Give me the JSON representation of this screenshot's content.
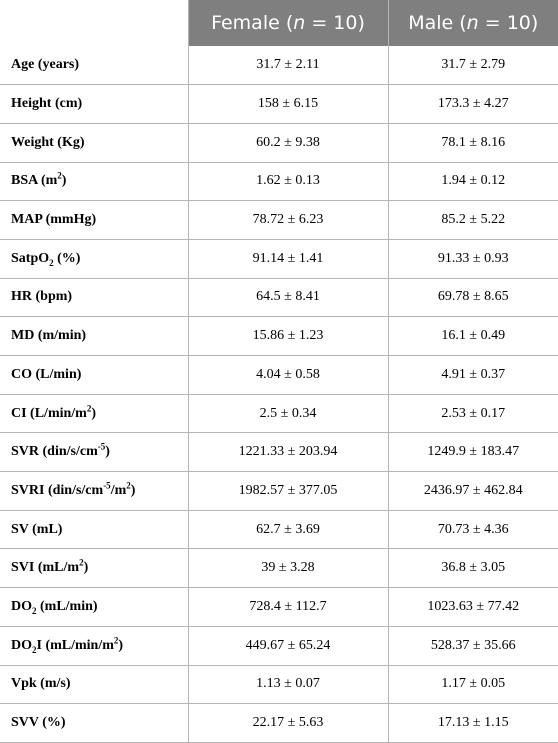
{
  "header": {
    "col1": "",
    "col2": {
      "prefix": "Female (",
      "n": "n",
      "suffix": " = 10)"
    },
    "col3": {
      "prefix": "Male (",
      "n": "n",
      "suffix": " = 10)"
    }
  },
  "rows": [
    {
      "label": {
        "a": "Age (years)",
        "b": "",
        "c": ""
      },
      "female": "31.7 ± 2.11",
      "male": "31.7 ± 2.79"
    },
    {
      "label": {
        "a": "Height (cm)",
        "b": "",
        "c": ""
      },
      "female": "158 ± 6.15",
      "male": "173.3 ± 4.27"
    },
    {
      "label": {
        "a": "Weight (Kg)",
        "b": "",
        "c": ""
      },
      "female": "60.2 ± 9.38",
      "male": "78.1 ± 8.16"
    },
    {
      "label": {
        "a": "BSA (m",
        "b": "2",
        "c": ")"
      },
      "female": "1.62 ± 0.13",
      "male": "1.94 ± 0.12"
    },
    {
      "label": {
        "a": "MAP (mmHg)",
        "b": "",
        "c": ""
      },
      "female": "78.72 ± 6.23",
      "male": "85.2 ± 5.22"
    },
    {
      "label": {
        "a": "SatpO",
        "b": "2",
        "c": " (%)"
      },
      "female": "91.14 ± 1.41",
      "male": "91.33 ± 0.93"
    },
    {
      "label": {
        "a": "HR (bpm)",
        "b": "",
        "c": ""
      },
      "female": "64.5 ± 8.41",
      "male": "69.78 ± 8.65"
    },
    {
      "label": {
        "a": "MD (m/min)",
        "b": "",
        "c": ""
      },
      "female": "15.86 ± 1.23",
      "male": "16.1 ± 0.49"
    },
    {
      "label": {
        "a": "CO (L/min)",
        "b": "",
        "c": ""
      },
      "female": "4.04 ± 0.58",
      "male": "4.91 ± 0.37"
    },
    {
      "label": {
        "a": "CI (L/min/m",
        "b": "2",
        "c": ")"
      },
      "female": "2.5 ± 0.34",
      "male": "2.53 ± 0.17"
    },
    {
      "label": {
        "a": "SVR (din/s/cm",
        "b": "-5",
        "c": ")"
      },
      "female": "1221.33 ± 203.94",
      "male": "1249.9 ± 183.47"
    },
    {
      "label": {
        "a": "SVRI (din/s/cm",
        "b": "-5",
        "c": "/m",
        "d": "2",
        "e": ")"
      },
      "female": "1982.57 ± 377.05",
      "male": "2436.97 ± 462.84"
    },
    {
      "label": {
        "a": "SV (mL)",
        "b": "",
        "c": ""
      },
      "female": "62.7 ± 3.69",
      "male": "70.73 ± 4.36"
    },
    {
      "label": {
        "a": "SVI (mL/m",
        "b": "2",
        "c": ")"
      },
      "female": "39 ± 3.28",
      "male": "36.8 ± 3.05"
    },
    {
      "label": {
        "a": "DO",
        "b": "2",
        "c": " (mL/min)"
      },
      "female": "728.4 ± 112.7",
      "male": "1023.63 ± 77.42"
    },
    {
      "label": {
        "a": "DO",
        "b": "2",
        "c": "I (mL/min/m",
        "d": "2",
        "e": ")"
      },
      "female": "449.67 ± 65.24",
      "male": "528.37 ± 35.66"
    },
    {
      "label": {
        "a": "Vpk (m/s)",
        "b": "",
        "c": ""
      },
      "female": "1.13 ± 0.07",
      "male": "1.17 ± 0.05"
    },
    {
      "label": {
        "a": "SVV (%)",
        "b": "",
        "c": ""
      },
      "female": "22.17 ± 5.63",
      "male": "17.13 ± 1.15"
    }
  ]
}
